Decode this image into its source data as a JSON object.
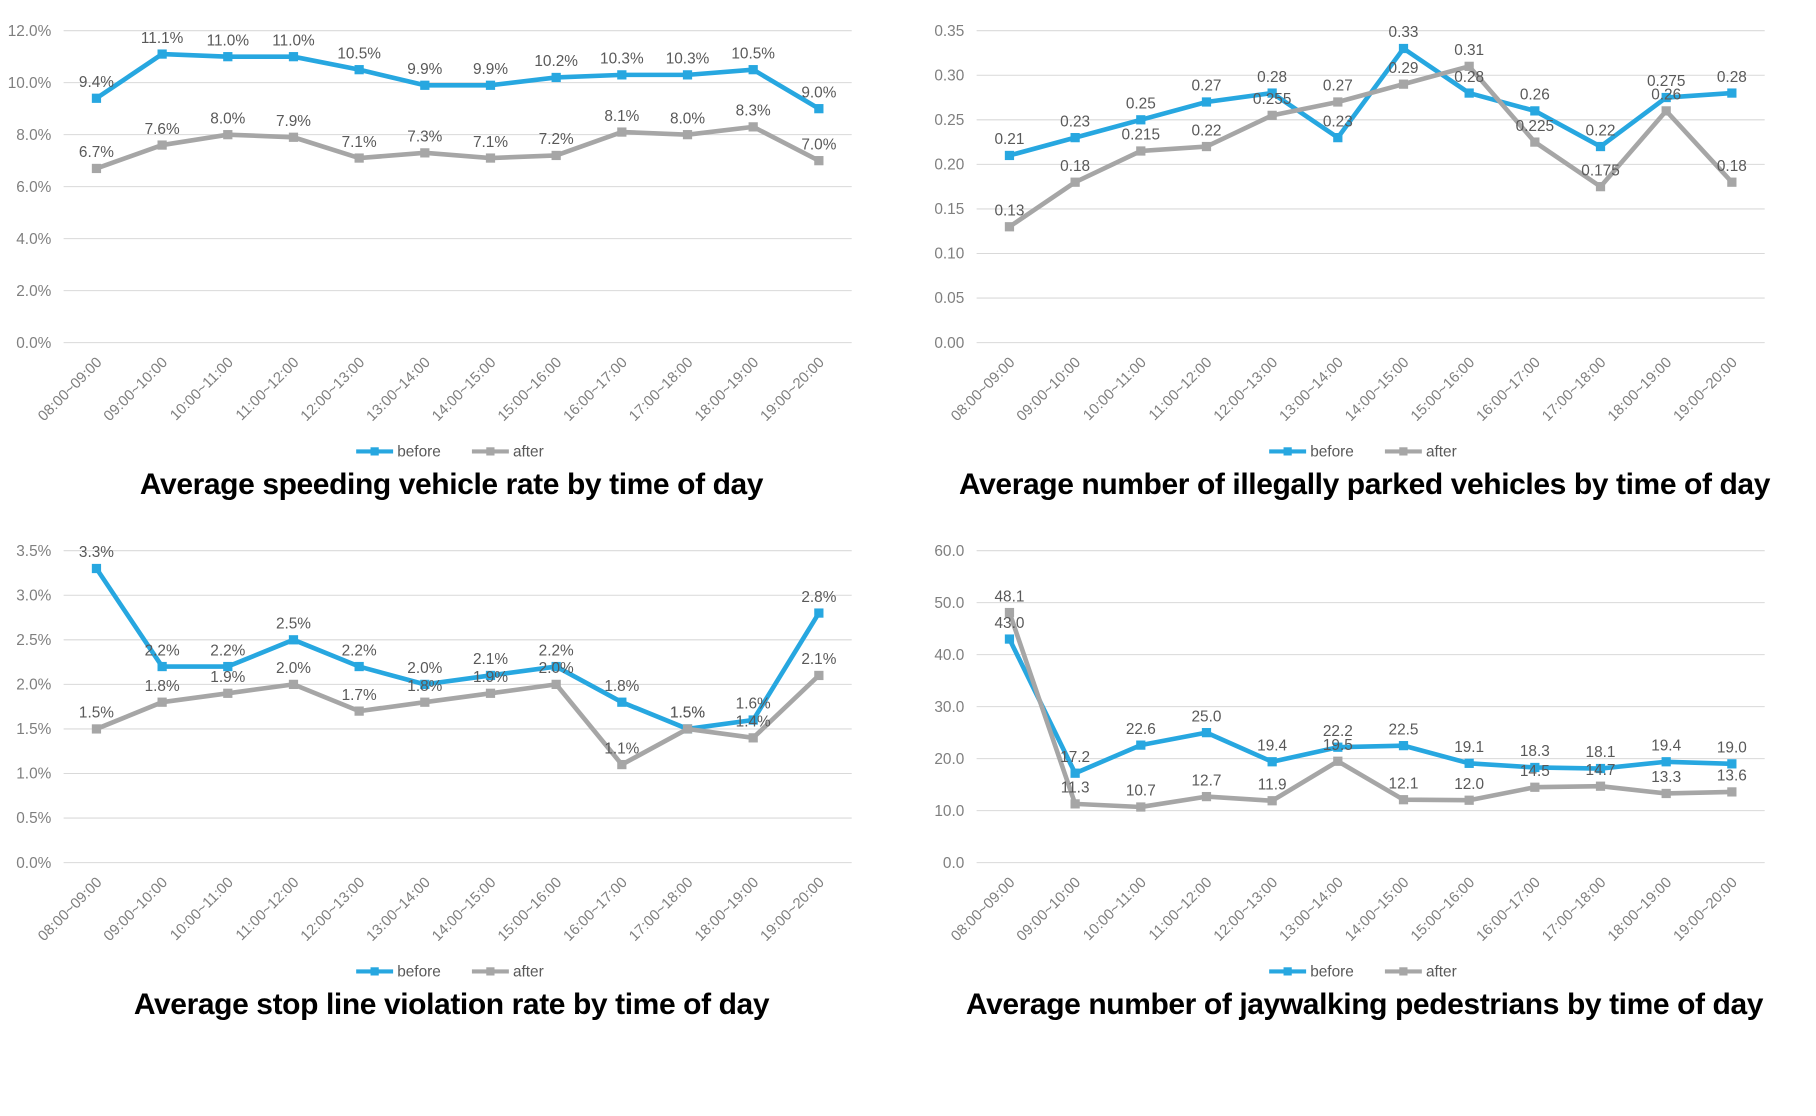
{
  "style": {
    "before_color": "#27A7E0",
    "after_color": "#A6A6A6",
    "grid_color": "#D9D9D9",
    "axis_text_color": "#7F7F7F",
    "data_label_color": "#595959",
    "title_color": "#000000"
  },
  "chart_data": [
    {
      "id": "speeding-rate",
      "type": "line",
      "title": "Average speeding vehicle rate by time of day",
      "categories": [
        "08:00~09:00",
        "09:00~10:00",
        "10:00~11:00",
        "11:00~12:00",
        "12:00~13:00",
        "13:00~14:00",
        "14:00~15:00",
        "15:00~16:00",
        "16:00~17:00",
        "17:00~18:00",
        "18:00~19:00",
        "19:00~20:00"
      ],
      "ylim": [
        0,
        12
      ],
      "ytick_step": 2,
      "ytick_labels": [
        "0.0%",
        "2.0%",
        "4.0%",
        "6.0%",
        "8.0%",
        "10.0%",
        "12.0%"
      ],
      "grid": true,
      "legend_position": "bottom",
      "series": [
        {
          "name": "before",
          "color": "#27A7E0",
          "values": [
            9.4,
            11.1,
            11.0,
            11.0,
            10.5,
            9.9,
            9.9,
            10.2,
            10.3,
            10.3,
            10.5,
            9.0
          ],
          "labels": [
            "9.4%",
            "11.1%",
            "11.0%",
            "11.0%",
            "10.5%",
            "9.9%",
            "9.9%",
            "10.2%",
            "10.3%",
            "10.3%",
            "10.5%",
            "9.0%"
          ]
        },
        {
          "name": "after",
          "color": "#A6A6A6",
          "values": [
            6.7,
            7.6,
            8.0,
            7.9,
            7.1,
            7.3,
            7.1,
            7.2,
            8.1,
            8.0,
            8.3,
            7.0
          ],
          "labels": [
            "6.7%",
            "7.6%",
            "8.0%",
            "7.9%",
            "7.1%",
            "7.3%",
            "7.1%",
            "7.2%",
            "8.1%",
            "8.0%",
            "8.3%",
            "7.0%"
          ]
        }
      ]
    },
    {
      "id": "illegal-parking",
      "type": "line",
      "title": "Average number of illegally parked vehicles by time of day",
      "categories": [
        "08:00~09:00",
        "09:00~10:00",
        "10:00~11:00",
        "11:00~12:00",
        "12:00~13:00",
        "13:00~14:00",
        "14:00~15:00",
        "15:00~16:00",
        "16:00~17:00",
        "17:00~18:00",
        "18:00~19:00",
        "19:00~20:00"
      ],
      "ylim": [
        0,
        0.35
      ],
      "ytick_step": 0.05,
      "ytick_labels": [
        "0.00",
        "0.05",
        "0.10",
        "0.15",
        "0.20",
        "0.25",
        "0.30",
        "0.35"
      ],
      "grid": true,
      "legend_position": "bottom",
      "series": [
        {
          "name": "before",
          "color": "#27A7E0",
          "values": [
            0.21,
            0.23,
            0.25,
            0.27,
            0.28,
            0.23,
            0.33,
            0.28,
            0.26,
            0.22,
            0.275,
            0.28
          ],
          "labels": [
            "0.21",
            "0.23",
            "0.25",
            "0.27",
            "0.28",
            "0.23",
            "0.33",
            "0.28",
            "0.26",
            "0.22",
            "0.275",
            "0.28"
          ]
        },
        {
          "name": "after",
          "color": "#A6A6A6",
          "values": [
            0.13,
            0.18,
            0.215,
            0.22,
            0.255,
            0.27,
            0.29,
            0.31,
            0.225,
            0.175,
            0.26,
            0.18
          ],
          "labels": [
            "0.13",
            "0.18",
            "0.215",
            "0.22",
            "0.255",
            "0.27",
            "0.29",
            "0.31",
            "0.225",
            "0.175",
            "0.26",
            "0.18"
          ]
        }
      ]
    },
    {
      "id": "stop-line-violation",
      "type": "line",
      "title": "Average stop line violation rate by time of day",
      "categories": [
        "08:00~09:00",
        "09:00~10:00",
        "10:00~11:00",
        "11:00~12:00",
        "12:00~13:00",
        "13:00~14:00",
        "14:00~15:00",
        "15:00~16:00",
        "16:00~17:00",
        "17:00~18:00",
        "18:00~19:00",
        "19:00~20:00"
      ],
      "ylim": [
        0,
        3.5
      ],
      "ytick_step": 0.5,
      "ytick_labels": [
        "0.0%",
        "0.5%",
        "1.0%",
        "1.5%",
        "2.0%",
        "2.5%",
        "3.0%",
        "3.5%"
      ],
      "grid": true,
      "legend_position": "bottom",
      "series": [
        {
          "name": "before",
          "color": "#27A7E0",
          "values": [
            3.3,
            2.2,
            2.2,
            2.5,
            2.2,
            2.0,
            2.1,
            2.2,
            1.8,
            1.5,
            1.6,
            2.8
          ],
          "labels": [
            "3.3%",
            "2.2%",
            "2.2%",
            "2.5%",
            "2.2%",
            "2.0%",
            "2.1%",
            "2.2%",
            "1.8%",
            "1.5%",
            "1.6%",
            "2.8%"
          ]
        },
        {
          "name": "after",
          "color": "#A6A6A6",
          "values": [
            1.5,
            1.8,
            1.9,
            2.0,
            1.7,
            1.8,
            1.9,
            2.0,
            1.1,
            1.5,
            1.4,
            2.1
          ],
          "labels": [
            "1.5%",
            "1.8%",
            "1.9%",
            "2.0%",
            "1.7%",
            "1.8%",
            "1.9%",
            "2.0%",
            "1.1%",
            "1.5%",
            "1.4%",
            "2.1%"
          ]
        }
      ]
    },
    {
      "id": "jaywalking",
      "type": "line",
      "title": "Average number of jaywalking pedestrians by time of day",
      "categories": [
        "08:00~09:00",
        "09:00~10:00",
        "10:00~11:00",
        "11:00~12:00",
        "12:00~13:00",
        "13:00~14:00",
        "14:00~15:00",
        "15:00~16:00",
        "16:00~17:00",
        "17:00~18:00",
        "18:00~19:00",
        "19:00~20:00"
      ],
      "ylim": [
        0,
        60
      ],
      "ytick_step": 10,
      "ytick_labels": [
        "0.0",
        "10.0",
        "20.0",
        "30.0",
        "40.0",
        "50.0",
        "60.0"
      ],
      "grid": true,
      "legend_position": "bottom",
      "series": [
        {
          "name": "before",
          "color": "#27A7E0",
          "values": [
            43.0,
            17.2,
            22.6,
            25.0,
            19.4,
            22.2,
            22.5,
            19.1,
            18.3,
            18.1,
            19.4,
            19.0
          ],
          "labels": [
            "43.0",
            "17.2",
            "22.6",
            "25.0",
            "19.4",
            "22.2",
            "22.5",
            "19.1",
            "18.3",
            "18.1",
            "19.4",
            "19.0"
          ]
        },
        {
          "name": "after",
          "color": "#A6A6A6",
          "values": [
            48.1,
            11.3,
            10.7,
            12.7,
            11.9,
            19.5,
            12.1,
            12.0,
            14.5,
            14.7,
            13.3,
            13.6
          ],
          "labels": [
            "48.1",
            "11.3",
            "10.7",
            "12.7",
            "11.9",
            "19.5",
            "12.1",
            "12.0",
            "14.5",
            "14.7",
            "13.3",
            "13.6"
          ]
        }
      ]
    }
  ]
}
